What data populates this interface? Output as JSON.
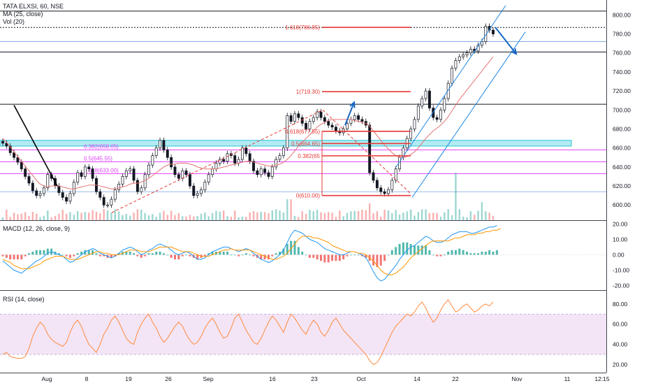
{
  "header": {
    "symbol": "TATA ELXSI, 60, NSE",
    "ma_label": "MA (25, close)",
    "vol_label": "Vol (20)"
  },
  "macd_panel": {
    "label": "MACD (12, 26, close, 9)"
  },
  "rsi_panel": {
    "label": "RSI (14, close)"
  },
  "colors": {
    "up": "#26a69a",
    "down": "#ef5350",
    "candle": "#131722",
    "ma": "#e57373",
    "fib": "#e53935",
    "fib_label": "#e53935",
    "magenta": "#e040fb",
    "cyan_zone": "#80deea",
    "channel": "#1e88e5",
    "arrow": "#1565c0",
    "macd_line": "#2196f3",
    "signal_line": "#ff9800",
    "rsi_line": "#ff8a3d",
    "rsi_band": "#f3e5f5"
  },
  "chart_data": [
    {
      "type": "candlestick",
      "title": "TATA ELXSI, 60, NSE",
      "x_ticks": [
        "Aug",
        "8",
        "19",
        "26",
        "Sep",
        "16",
        "23",
        "Oct",
        "14",
        "22",
        "Nov",
        "11",
        "12:15"
      ],
      "y_ticks": [
        600,
        620,
        640,
        660,
        680,
        700,
        720,
        740,
        760,
        780,
        800
      ],
      "ylim": [
        584,
        812
      ],
      "series_close": [
        665,
        662,
        655,
        650,
        645,
        638,
        630,
        623,
        615,
        610,
        612,
        618,
        632,
        628,
        620,
        613,
        608,
        604,
        612,
        624,
        634,
        630,
        640,
        638,
        628,
        614,
        608,
        600,
        600,
        606,
        616,
        622,
        630,
        636,
        638,
        626,
        614,
        618,
        632,
        642,
        652,
        660,
        668,
        658,
        650,
        640,
        632,
        628,
        636,
        632,
        620,
        610,
        612,
        616,
        624,
        632,
        638,
        644,
        648,
        646,
        654,
        652,
        644,
        648,
        660,
        654,
        646,
        636,
        632,
        638,
        634,
        630,
        640,
        648,
        652,
        660,
        694,
        688,
        696,
        692,
        686,
        680,
        688,
        692,
        698,
        692,
        688,
        684,
        682,
        678,
        676,
        680,
        686,
        690,
        694,
        690,
        688,
        684,
        634,
        626,
        618,
        614,
        612,
        616,
        626,
        638,
        650,
        660,
        670,
        680,
        690,
        704,
        712,
        720,
        702,
        692,
        690,
        700,
        712,
        728,
        744,
        752,
        756,
        758,
        760,
        764,
        762,
        768,
        772,
        788,
        784,
        780
      ],
      "ma_line": [
        670,
        666,
        661,
        656,
        651,
        646,
        641,
        636,
        631,
        626,
        622,
        620,
        619,
        620,
        620,
        620,
        619,
        618,
        617,
        617,
        618,
        619,
        620,
        621,
        621,
        621,
        620,
        619,
        618,
        617,
        617,
        618,
        619,
        620,
        622,
        623,
        623,
        624,
        626,
        628,
        631,
        634,
        637,
        640,
        642,
        643,
        643,
        644,
        644,
        644,
        643,
        642,
        640,
        639,
        638,
        638,
        638,
        638,
        639,
        640,
        641,
        642,
        643,
        644,
        645,
        646,
        646,
        645,
        644,
        643,
        642,
        641,
        641,
        642,
        643,
        645,
        648,
        652,
        657,
        662,
        666,
        670,
        674,
        678,
        682,
        685,
        687,
        689,
        690,
        690,
        690,
        690,
        690,
        690,
        689,
        688,
        687,
        686,
        683,
        678,
        673,
        668,
        663,
        659,
        655,
        652,
        650,
        650,
        651,
        653,
        656,
        660,
        665,
        670,
        674,
        678,
        681,
        684,
        688,
        693,
        699,
        705,
        711,
        716,
        721,
        726,
        731,
        736,
        741,
        746,
        751,
        756
      ],
      "fib_levels": [
        {
          "label": "1.618(786.85)",
          "value": 786.85
        },
        {
          "label": "1(719.30)",
          "value": 719.3
        },
        {
          "label": "0.618(677.55)",
          "value": 677.55
        },
        {
          "label": "0.5(664.65)",
          "value": 664.65
        },
        {
          "label": "0.382(65",
          "value": 651.75
        },
        {
          "label": "0(610.00)",
          "value": 610.0
        }
      ],
      "retracement_levels": [
        {
          "label": "0.382(658.05)",
          "value": 658.05
        },
        {
          "label": "0.5(645.55)",
          "value": 645.55
        },
        {
          "label": "0.618(633.00)",
          "value": 633.0
        }
      ],
      "horizontal_lines": [
        804,
        786.85,
        772,
        761,
        706,
        614
      ],
      "support_zone": [
        662,
        668
      ]
    },
    {
      "type": "bar",
      "title": "Vol (20)",
      "note": "volume histogram under price"
    },
    {
      "type": "line",
      "title": "MACD (12, 26, close, 9)",
      "y_ticks": [
        20.0,
        10.0,
        0.0,
        -10.0,
        -20.0
      ],
      "ylim": [
        -23,
        22
      ],
      "macd": [
        -4,
        -6,
        -8,
        -10,
        -11,
        -12,
        -10,
        -8,
        -6,
        -4,
        -3,
        -1,
        1,
        2,
        1,
        0,
        -1,
        -3,
        -5,
        -4,
        -2,
        0,
        2,
        3,
        4,
        3,
        1,
        0,
        -1,
        -2,
        -1,
        1,
        3,
        4,
        5,
        4,
        2,
        0,
        1,
        3,
        4,
        6,
        7,
        6,
        5,
        3,
        1,
        0,
        1,
        2,
        1,
        -1,
        -3,
        -3,
        -2,
        0,
        2,
        3,
        4,
        5,
        5,
        4,
        3,
        2,
        3,
        4,
        3,
        1,
        -1,
        -3,
        -4,
        -5,
        -4,
        -2,
        0,
        3,
        8,
        13,
        16,
        15,
        14,
        12,
        10,
        9,
        8,
        6,
        4,
        3,
        2,
        1,
        0,
        0,
        1,
        2,
        2,
        1,
        0,
        -2,
        -6,
        -11,
        -15,
        -17,
        -16,
        -13,
        -10,
        -7,
        -3,
        0,
        3,
        5,
        6,
        8,
        10,
        12,
        11,
        9,
        8,
        8,
        9,
        11,
        13,
        14,
        15,
        15,
        15,
        14,
        14,
        15,
        16,
        17,
        18,
        18,
        19
      ],
      "signal": [
        -3,
        -4,
        -5,
        -7,
        -8,
        -9,
        -9,
        -9,
        -8,
        -7,
        -6,
        -4,
        -3,
        -2,
        -1,
        -1,
        -1,
        -2,
        -3,
        -3,
        -3,
        -2,
        -1,
        0,
        1,
        2,
        2,
        1,
        1,
        0,
        0,
        0,
        1,
        2,
        3,
        3,
        3,
        2,
        2,
        2,
        3,
        4,
        5,
        5,
        5,
        5,
        4,
        3,
        2,
        2,
        2,
        1,
        0,
        -1,
        -1,
        -1,
        0,
        1,
        2,
        3,
        3,
        4,
        3,
        3,
        3,
        3,
        3,
        2,
        1,
        0,
        -1,
        -2,
        -3,
        -3,
        -2,
        -1,
        1,
        4,
        7,
        10,
        12,
        12,
        12,
        11,
        11,
        10,
        9,
        8,
        6,
        5,
        4,
        3,
        2,
        2,
        2,
        1,
        1,
        0,
        -2,
        -4,
        -7,
        -10,
        -12,
        -13,
        -13,
        -12,
        -10,
        -8,
        -5,
        -2,
        0,
        2,
        4,
        6,
        8,
        9,
        9,
        9,
        9,
        9,
        10,
        11,
        11,
        12,
        13,
        13,
        13,
        14,
        14,
        15,
        15,
        16,
        16,
        17
      ]
    },
    {
      "type": "line",
      "title": "RSI (14, close)",
      "y_ticks": [
        80.0,
        60.0,
        40.0,
        20.0
      ],
      "ylim": [
        12,
        93
      ],
      "band": [
        30,
        70
      ],
      "values": [
        30,
        32,
        28,
        27,
        26,
        26,
        28,
        36,
        48,
        56,
        62,
        58,
        50,
        45,
        42,
        40,
        38,
        42,
        52,
        60,
        64,
        58,
        48,
        40,
        36,
        32,
        40,
        50,
        56,
        64,
        68,
        62,
        54,
        46,
        42,
        40,
        52,
        60,
        66,
        70,
        62,
        56,
        48,
        42,
        46,
        52,
        58,
        62,
        58,
        50,
        44,
        40,
        42,
        48,
        56,
        62,
        66,
        60,
        52,
        46,
        48,
        56,
        66,
        70,
        62,
        54,
        48,
        42,
        40,
        46,
        54,
        62,
        68,
        64,
        58,
        52,
        62,
        70,
        66,
        60,
        54,
        50,
        58,
        64,
        60,
        52,
        48,
        54,
        62,
        66,
        60,
        54,
        50,
        46,
        42,
        38,
        34,
        30,
        24,
        20,
        22,
        28,
        36,
        44,
        52,
        58,
        62,
        66,
        70,
        68,
        72,
        78,
        82,
        76,
        68,
        62,
        66,
        74,
        80,
        84,
        78,
        72,
        74,
        78,
        80,
        76,
        72,
        74,
        78,
        80,
        78,
        82
      ]
    }
  ]
}
